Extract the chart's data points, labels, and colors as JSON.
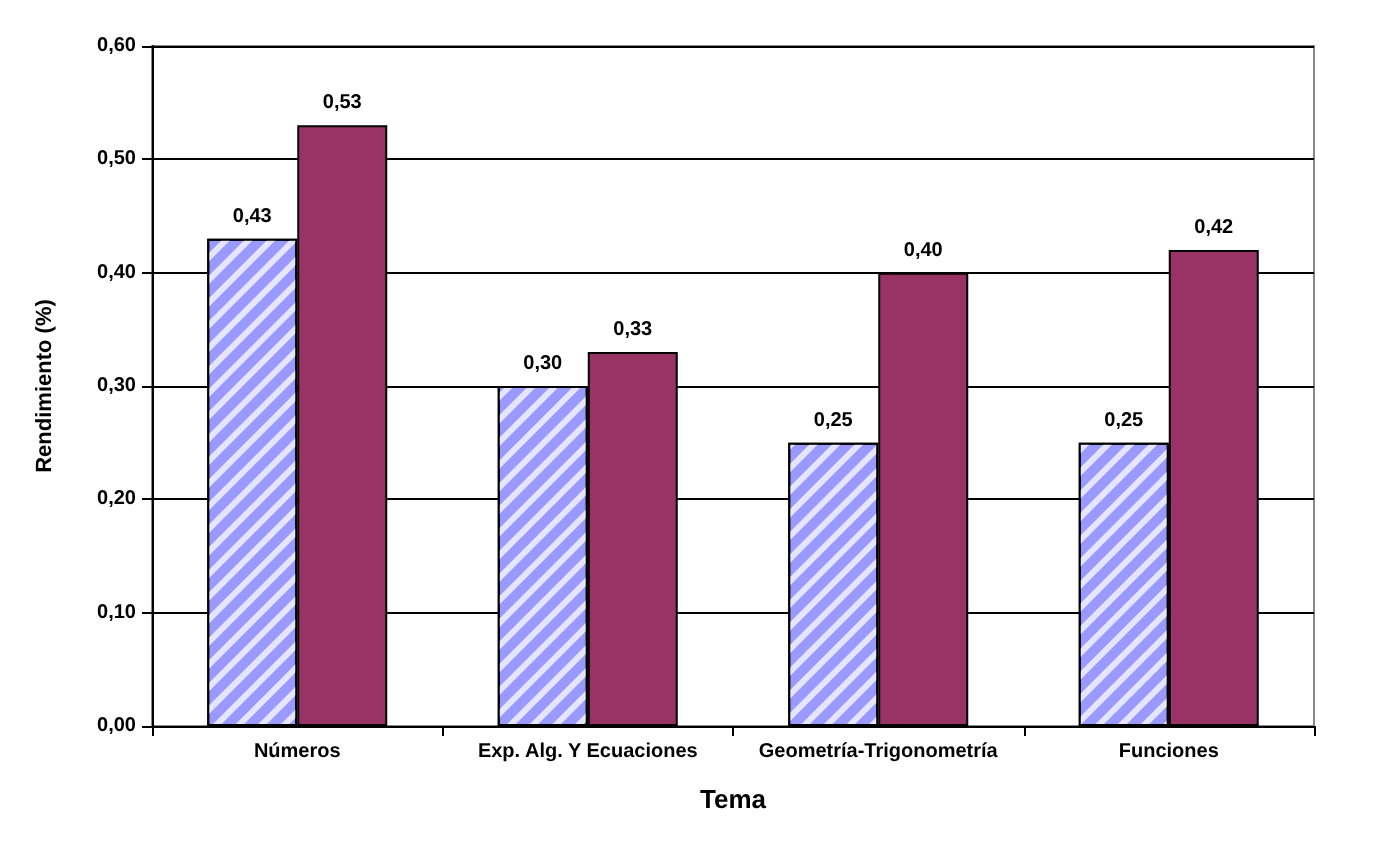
{
  "chart_data": {
    "type": "bar",
    "xlabel": "Tema",
    "ylabel": "Rendimiento (%)",
    "categories": [
      "Números",
      "Exp. Alg. Y Ecuaciones",
      "Geometría-Trigonometría",
      "Funciones"
    ],
    "series": [
      {
        "color": "#9999ff",
        "values": [
          0.43,
          0.3,
          0.25,
          0.25
        ],
        "value_labels": [
          "0,43",
          "0,30",
          "0,25",
          "0,25"
        ]
      },
      {
        "color": "#993366",
        "values": [
          0.53,
          0.33,
          0.4,
          0.42
        ],
        "value_labels": [
          "0,53",
          "0,33",
          "0,40",
          "0,42"
        ]
      }
    ],
    "ylim": [
      0,
      0.6
    ],
    "yticks": [
      {
        "value": 0,
        "label": "0,00"
      },
      {
        "value": 0.1,
        "label": "0,10"
      },
      {
        "value": 0.2,
        "label": "0,20"
      },
      {
        "value": 0.3,
        "label": "0,30"
      },
      {
        "value": 0.4,
        "label": "0,40"
      },
      {
        "value": 0.5,
        "label": "0,50"
      },
      {
        "value": 0.6,
        "label": "0,60"
      }
    ],
    "grid": "y"
  }
}
